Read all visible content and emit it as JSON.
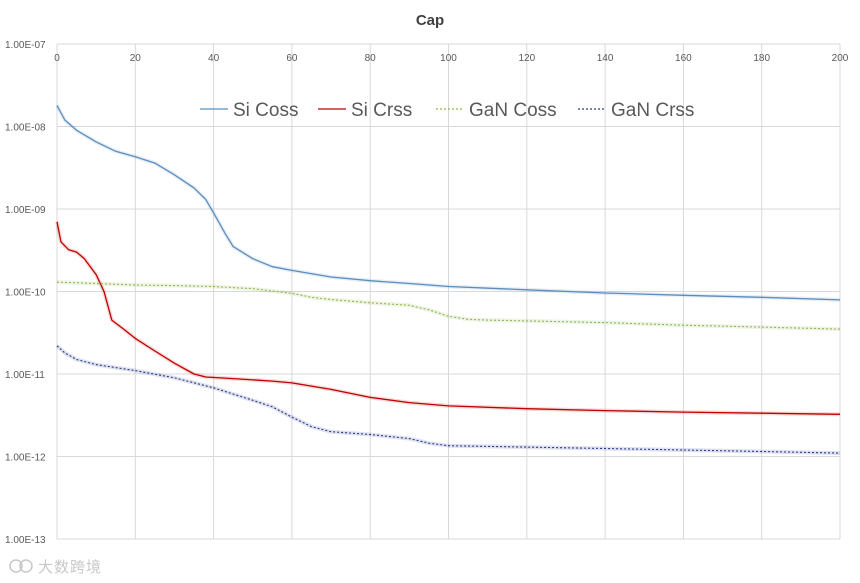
{
  "chart_data": {
    "type": "line",
    "title": "Cap",
    "xlabel": "",
    "ylabel": "",
    "xlim": [
      0,
      200
    ],
    "ylim": [
      1e-13,
      1e-07
    ],
    "yscale": "log",
    "x_ticks": [
      "0",
      "20",
      "40",
      "60",
      "80",
      "100",
      "120",
      "140",
      "160",
      "180",
      "200"
    ],
    "y_ticks": [
      "1.00E-07",
      "1.00E-08",
      "1.00E-09",
      "1.00E-10",
      "1.00E-11",
      "1.00E-12",
      "1.00E-13"
    ],
    "grid": true,
    "legend_position": "top",
    "series": [
      {
        "name": "Si Coss",
        "color": "#5b8dbf",
        "dash": "solid",
        "points": [
          [
            0,
            1.8e-08
          ],
          [
            2,
            1.2e-08
          ],
          [
            5,
            9e-09
          ],
          [
            10,
            6.5e-09
          ],
          [
            15,
            5e-09
          ],
          [
            20,
            4.3e-09
          ],
          [
            25,
            3.6e-09
          ],
          [
            30,
            2.6e-09
          ],
          [
            35,
            1.8e-09
          ],
          [
            38,
            1.3e-09
          ],
          [
            40,
            9e-10
          ],
          [
            43,
            5e-10
          ],
          [
            45,
            3.5e-10
          ],
          [
            50,
            2.5e-10
          ],
          [
            55,
            2e-10
          ],
          [
            60,
            1.8e-10
          ],
          [
            70,
            1.5e-10
          ],
          [
            80,
            1.35e-10
          ],
          [
            90,
            1.25e-10
          ],
          [
            100,
            1.15e-10
          ],
          [
            120,
            1.05e-10
          ],
          [
            140,
            9.6e-11
          ],
          [
            160,
            9e-11
          ],
          [
            180,
            8.5e-11
          ],
          [
            200,
            7.9e-11
          ]
        ]
      },
      {
        "name": "Si Crss",
        "color": "#c00000",
        "dash": "solid",
        "points": [
          [
            0,
            7e-10
          ],
          [
            1,
            4e-10
          ],
          [
            3,
            3.2e-10
          ],
          [
            5,
            3e-10
          ],
          [
            7,
            2.5e-10
          ],
          [
            10,
            1.6e-10
          ],
          [
            12,
            1e-10
          ],
          [
            14,
            4.5e-11
          ],
          [
            17,
            3.5e-11
          ],
          [
            20,
            2.7e-11
          ],
          [
            25,
            1.9e-11
          ],
          [
            30,
            1.35e-11
          ],
          [
            35,
            1e-11
          ],
          [
            38,
            9.2e-12
          ],
          [
            45,
            8.8e-12
          ],
          [
            55,
            8.2e-12
          ],
          [
            60,
            7.8e-12
          ],
          [
            70,
            6.5e-12
          ],
          [
            80,
            5.2e-12
          ],
          [
            90,
            4.5e-12
          ],
          [
            100,
            4.1e-12
          ],
          [
            120,
            3.8e-12
          ],
          [
            140,
            3.6e-12
          ],
          [
            160,
            3.45e-12
          ],
          [
            180,
            3.35e-12
          ],
          [
            200,
            3.25e-12
          ]
        ]
      },
      {
        "name": "GaN Coss",
        "color": "#8fb84a",
        "dash": "dotted",
        "points": [
          [
            0,
            1.3e-10
          ],
          [
            10,
            1.25e-10
          ],
          [
            20,
            1.2e-10
          ],
          [
            30,
            1.18e-10
          ],
          [
            40,
            1.15e-10
          ],
          [
            50,
            1.08e-10
          ],
          [
            60,
            9.5e-11
          ],
          [
            65,
            8.5e-11
          ],
          [
            70,
            8e-11
          ],
          [
            80,
            7.3e-11
          ],
          [
            90,
            6.8e-11
          ],
          [
            95,
            6e-11
          ],
          [
            100,
            5e-11
          ],
          [
            105,
            4.6e-11
          ],
          [
            110,
            4.5e-11
          ],
          [
            120,
            4.4e-11
          ],
          [
            140,
            4.2e-11
          ],
          [
            160,
            3.9e-11
          ],
          [
            180,
            3.7e-11
          ],
          [
            200,
            3.5e-11
          ]
        ]
      },
      {
        "name": "GaN Crss",
        "color": "#2a3a8a",
        "dash": "dotted",
        "points": [
          [
            0,
            2.2e-11
          ],
          [
            2,
            1.8e-11
          ],
          [
            5,
            1.5e-11
          ],
          [
            10,
            1.3e-11
          ],
          [
            20,
            1.1e-11
          ],
          [
            30,
            9e-12
          ],
          [
            40,
            6.8e-12
          ],
          [
            50,
            4.8e-12
          ],
          [
            55,
            4e-12
          ],
          [
            60,
            3e-12
          ],
          [
            65,
            2.3e-12
          ],
          [
            70,
            2e-12
          ],
          [
            80,
            1.85e-12
          ],
          [
            90,
            1.65e-12
          ],
          [
            95,
            1.45e-12
          ],
          [
            100,
            1.35e-12
          ],
          [
            120,
            1.3e-12
          ],
          [
            140,
            1.25e-12
          ],
          [
            160,
            1.2e-12
          ],
          [
            180,
            1.15e-12
          ],
          [
            200,
            1.1e-12
          ]
        ]
      }
    ]
  },
  "watermark": {
    "text": "大数跨境"
  }
}
